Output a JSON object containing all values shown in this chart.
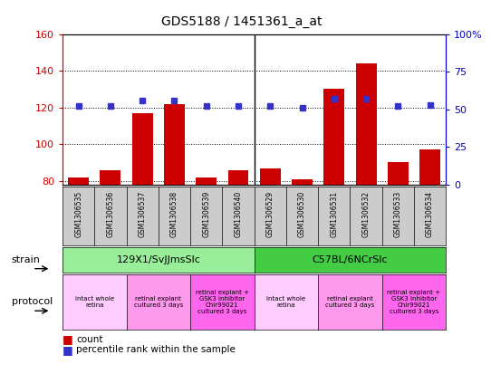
{
  "title": "GDS5188 / 1451361_a_at",
  "samples": [
    "GSM1306535",
    "GSM1306536",
    "GSM1306537",
    "GSM1306538",
    "GSM1306539",
    "GSM1306540",
    "GSM1306529",
    "GSM1306530",
    "GSM1306531",
    "GSM1306532",
    "GSM1306533",
    "GSM1306534"
  ],
  "counts": [
    82,
    86,
    117,
    122,
    82,
    86,
    87,
    81,
    130,
    144,
    90,
    97
  ],
  "percentiles": [
    52,
    52,
    56,
    56,
    52,
    52,
    52,
    51,
    57,
    57,
    52,
    53
  ],
  "ylim_left": [
    78,
    160
  ],
  "ylim_right": [
    0,
    100
  ],
  "yticks_left": [
    80,
    100,
    120,
    140,
    160
  ],
  "ytick_labels_left": [
    "80",
    "100",
    "120",
    "140",
    "160"
  ],
  "yticks_right": [
    0,
    25,
    50,
    75,
    100
  ],
  "ytick_labels_right": [
    "0",
    "25",
    "50",
    "75",
    "100%"
  ],
  "bar_color": "#cc0000",
  "dot_color": "#3333cc",
  "strain_groups": [
    {
      "label": "129X1/SvJJmsSlc",
      "start": 0,
      "end": 6,
      "color": "#99ee99"
    },
    {
      "label": "C57BL/6NCrSlc",
      "start": 6,
      "end": 12,
      "color": "#44cc44"
    }
  ],
  "protocol_groups": [
    {
      "label": "intact whole\nretina",
      "start": 0,
      "end": 2,
      "color": "#ffccff"
    },
    {
      "label": "retinal explant\ncultured 3 days",
      "start": 2,
      "end": 4,
      "color": "#ff99ee"
    },
    {
      "label": "retinal explant +\nGSK3 inhibitor\nChir99021\ncultured 3 days",
      "start": 4,
      "end": 6,
      "color": "#ff66ee"
    },
    {
      "label": "intact whole\nretina",
      "start": 6,
      "end": 8,
      "color": "#ffccff"
    },
    {
      "label": "retinal explant\ncultured 3 days",
      "start": 8,
      "end": 10,
      "color": "#ff99ee"
    },
    {
      "label": "retinal explant +\nGSK3 inhibitor\nChir99021\ncultured 3 days",
      "start": 10,
      "end": 12,
      "color": "#ff66ee"
    }
  ],
  "left_axis_color": "#cc0000",
  "right_axis_color": "#0000cc",
  "bg_color": "#ffffff",
  "plot_bg_color": "#ffffff",
  "sample_box_color": "#cccccc",
  "legend_square_size": 8
}
